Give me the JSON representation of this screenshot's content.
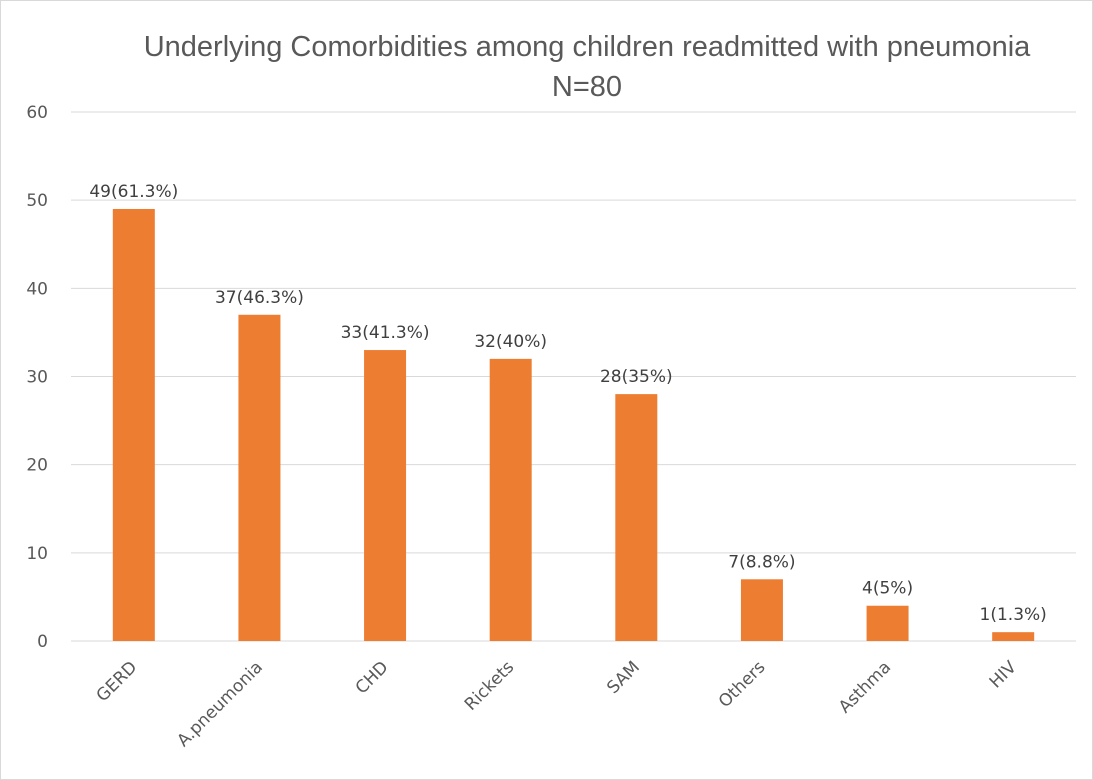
{
  "chart_data": {
    "type": "bar",
    "title": "Underlying Comorbidities among children readmitted with pneumonia",
    "subtitle": "N=80",
    "categories": [
      "GERD",
      "A.pneumonia",
      "CHD",
      "Rickets",
      "SAM",
      "Others",
      "Asthma",
      "HIV"
    ],
    "values": [
      49,
      37,
      33,
      32,
      28,
      7,
      4,
      1
    ],
    "data_labels": [
      "49(61.3%)",
      "37(46.3%)",
      "33(41.3%)",
      "32(40%)",
      "28(35%)",
      "7(8.8%)",
      "4(5%)",
      "1(1.3%)"
    ],
    "yticks": [
      "0",
      "10",
      "20",
      "30",
      "40",
      "50",
      "60"
    ],
    "ylim": [
      0,
      60
    ],
    "xlabel": "",
    "ylabel": "",
    "grid": true,
    "legend": "none",
    "bar_color": "#ed7d31",
    "grid_color": "#d9d9d9"
  }
}
